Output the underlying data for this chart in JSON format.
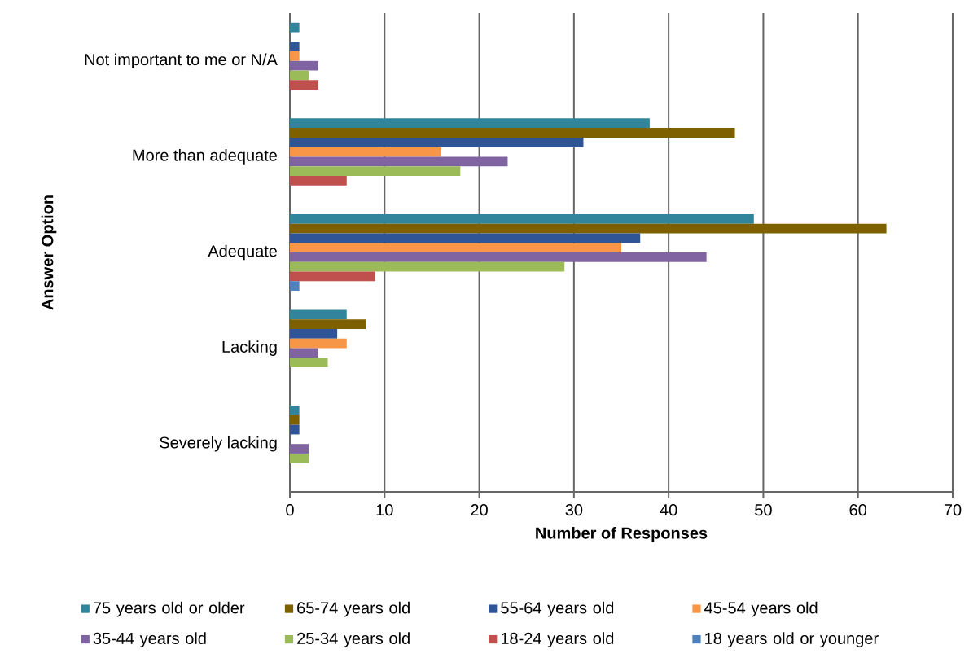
{
  "chart_data": {
    "type": "bar",
    "orientation": "horizontal",
    "xlabel": "Number of Responses",
    "ylabel": "Answer Option",
    "categories": [
      "Not important to me or N/A",
      "More than adequate",
      "Adequate",
      "Lacking",
      "Severely lacking"
    ],
    "series": [
      {
        "name": "75 years old or older",
        "color": "#31849b",
        "values": [
          1,
          38,
          49,
          6,
          1
        ]
      },
      {
        "name": "65-74 years old",
        "color": "#7f6000",
        "values": [
          0,
          47,
          63,
          8,
          1
        ]
      },
      {
        "name": "55-64 years old",
        "color": "#2f5597",
        "values": [
          1,
          31,
          37,
          5,
          1
        ]
      },
      {
        "name": "45-54 years old",
        "color": "#f79646",
        "values": [
          1,
          16,
          35,
          6,
          0
        ]
      },
      {
        "name": "35-44 years old",
        "color": "#8064a2",
        "values": [
          3,
          23,
          44,
          3,
          2
        ]
      },
      {
        "name": "25-34 years old",
        "color": "#9bbb59",
        "values": [
          2,
          18,
          29,
          4,
          2
        ]
      },
      {
        "name": "18-24 years old",
        "color": "#c0504d",
        "values": [
          3,
          6,
          9,
          0,
          0
        ]
      },
      {
        "name": "18 years old or younger",
        "color": "#4f81bd",
        "values": [
          0,
          0,
          1,
          0,
          0
        ]
      }
    ],
    "xlim": [
      0,
      70
    ],
    "xticks": [
      0,
      10,
      20,
      30,
      40,
      50,
      60,
      70
    ],
    "grid": "x",
    "legend": "bottom"
  }
}
